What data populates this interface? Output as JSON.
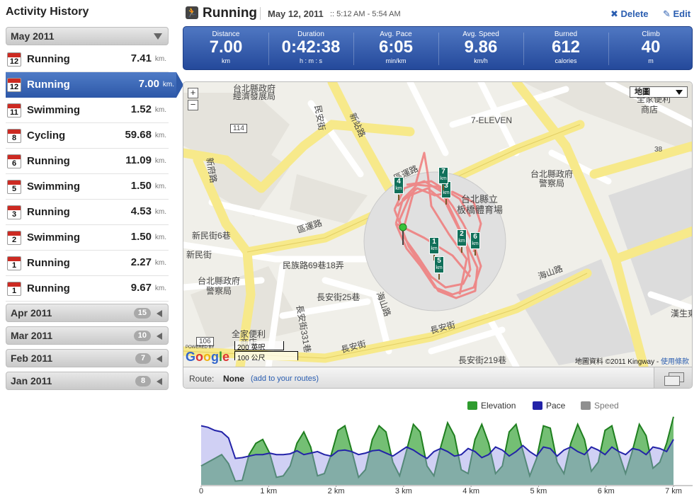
{
  "sidebar": {
    "title": "Activity History",
    "current_month": {
      "label": "May 2011"
    },
    "activities": [
      {
        "day": "12",
        "name": "Running",
        "distance": "7.41",
        "unit": "km."
      },
      {
        "day": "12",
        "name": "Running",
        "distance": "7.00",
        "unit": "km.",
        "selected": true
      },
      {
        "day": "11",
        "name": "Swimming",
        "distance": "1.52",
        "unit": "km."
      },
      {
        "day": "8",
        "name": "Cycling",
        "distance": "59.68",
        "unit": "km."
      },
      {
        "day": "6",
        "name": "Running",
        "distance": "11.09",
        "unit": "km."
      },
      {
        "day": "5",
        "name": "Swimming",
        "distance": "1.50",
        "unit": "km."
      },
      {
        "day": "3",
        "name": "Running",
        "distance": "4.53",
        "unit": "km."
      },
      {
        "day": "2",
        "name": "Swimming",
        "distance": "1.50",
        "unit": "km."
      },
      {
        "day": "1",
        "name": "Running",
        "distance": "2.27",
        "unit": "km."
      },
      {
        "day": "1",
        "name": "Running",
        "distance": "9.67",
        "unit": "km."
      }
    ],
    "other_months": [
      {
        "label": "Apr 2011",
        "count": "15"
      },
      {
        "label": "Mar 2011",
        "count": "10"
      },
      {
        "label": "Feb 2011",
        "count": "7"
      },
      {
        "label": "Jan 2011",
        "count": "8"
      }
    ]
  },
  "header": {
    "title": "Running",
    "date": "May 12, 2011",
    "time": "::  5:12 AM - 5:54 AM",
    "delete_label": "Delete",
    "edit_label": "Edit"
  },
  "stats": [
    {
      "label": "Distance",
      "value": "7.00",
      "unit": "km"
    },
    {
      "label": "Duration",
      "value": "0:42:38",
      "unit": "h : m : s"
    },
    {
      "label": "Avg. Pace",
      "value": "6:05",
      "unit": "min/km"
    },
    {
      "label": "Avg. Speed",
      "value": "9.86",
      "unit": "km/h"
    },
    {
      "label": "Burned",
      "value": "612",
      "unit": "calories"
    },
    {
      "label": "Climb",
      "value": "40",
      "unit": "m"
    }
  ],
  "map": {
    "type_selector": "地圖",
    "zoom_in": "+",
    "zoom_out": "−",
    "labels": {
      "l1": "台北縣政府",
      "l2": "經濟發展局",
      "l3": "民安街",
      "l4": "新站路",
      "l5": "114",
      "l6": "7-ELEVEN",
      "l7": "全家便利",
      "l8": "商店",
      "l9": "新府路",
      "l10": "台北縣政府",
      "l11": "警察局",
      "l12": "台北縣政府",
      "l13": "警察局",
      "l14": "區運路",
      "l15": "區運路",
      "l16": "台北縣立",
      "l17": "板橋體育場",
      "l18": "新民街6巷",
      "l19": "民族路69巷18弄",
      "l20": "新民街",
      "l21": "長安街25巷",
      "l22": "海山路",
      "l23": "海山路",
      "l24": "長安街",
      "l25": "長安街",
      "l26": "長安街219巷",
      "l27": "全家便利",
      "l28": "商店",
      "l29": "漢生東",
      "l30": "38",
      "l31": "106",
      "l32": "長安街331巷"
    },
    "km_markers": [
      "1",
      "2",
      "3",
      "4",
      "5",
      "6",
      "7"
    ],
    "km_unit": "km",
    "scale_top": "200 英呎",
    "scale_bottom": "100 公尺",
    "powered_by": "POWERED BY",
    "google": "Google",
    "copyright": "地圖資料 ©2011 Kingway - ",
    "terms": "使用條款",
    "route_label": "Route:",
    "route_value": "None",
    "route_link": "(add to your routes)"
  },
  "chart_data": {
    "type": "area",
    "legend_placement": "top-right",
    "series": [
      {
        "name": "Elevation",
        "color": "#2e9c2e"
      },
      {
        "name": "Pace",
        "color": "#2323a8"
      },
      {
        "name": "Speed",
        "color": "#8f8f8f"
      }
    ],
    "xlim": [
      0,
      7
    ],
    "x_ticks": [
      "0",
      "1 km",
      "2 km",
      "3 km",
      "4 km",
      "5 km",
      "6 km",
      "7 km"
    ],
    "pace_profile": [
      0.78,
      0.76,
      0.72,
      0.7,
      0.62,
      0.35,
      0.36,
      0.38,
      0.4,
      0.4,
      0.42,
      0.4,
      0.4,
      0.41,
      0.45,
      0.4,
      0.42,
      0.44,
      0.4,
      0.38,
      0.45,
      0.46,
      0.44,
      0.4,
      0.42,
      0.45,
      0.46,
      0.42,
      0.38,
      0.44,
      0.5,
      0.46,
      0.4,
      0.35,
      0.44,
      0.48,
      0.44,
      0.38,
      0.4,
      0.48,
      0.44,
      0.36,
      0.4,
      0.5,
      0.46,
      0.38,
      0.44,
      0.52,
      0.44,
      0.38,
      0.5,
      0.48,
      0.38,
      0.46,
      0.5,
      0.44,
      0.4,
      0.5,
      0.46,
      0.4,
      0.5,
      0.44,
      0.4,
      0.48,
      0.46,
      0.4,
      0.5,
      0.48,
      0.44,
      0.6
    ],
    "elevation_profile": [
      0.25,
      0.3,
      0.35,
      0.4,
      0.28,
      0.05,
      0.06,
      0.4,
      0.55,
      0.6,
      0.42,
      0.1,
      0.12,
      0.25,
      0.55,
      0.7,
      0.5,
      0.12,
      0.15,
      0.4,
      0.72,
      0.78,
      0.45,
      0.1,
      0.2,
      0.6,
      0.78,
      0.7,
      0.3,
      0.12,
      0.45,
      0.8,
      0.7,
      0.25,
      0.12,
      0.5,
      0.82,
      0.65,
      0.2,
      0.15,
      0.6,
      0.8,
      0.55,
      0.15,
      0.25,
      0.7,
      0.8,
      0.45,
      0.12,
      0.35,
      0.78,
      0.75,
      0.3,
      0.15,
      0.55,
      0.8,
      0.6,
      0.18,
      0.3,
      0.72,
      0.78,
      0.42,
      0.15,
      0.45,
      0.8,
      0.65,
      0.22,
      0.3,
      0.55,
      0.9
    ]
  }
}
